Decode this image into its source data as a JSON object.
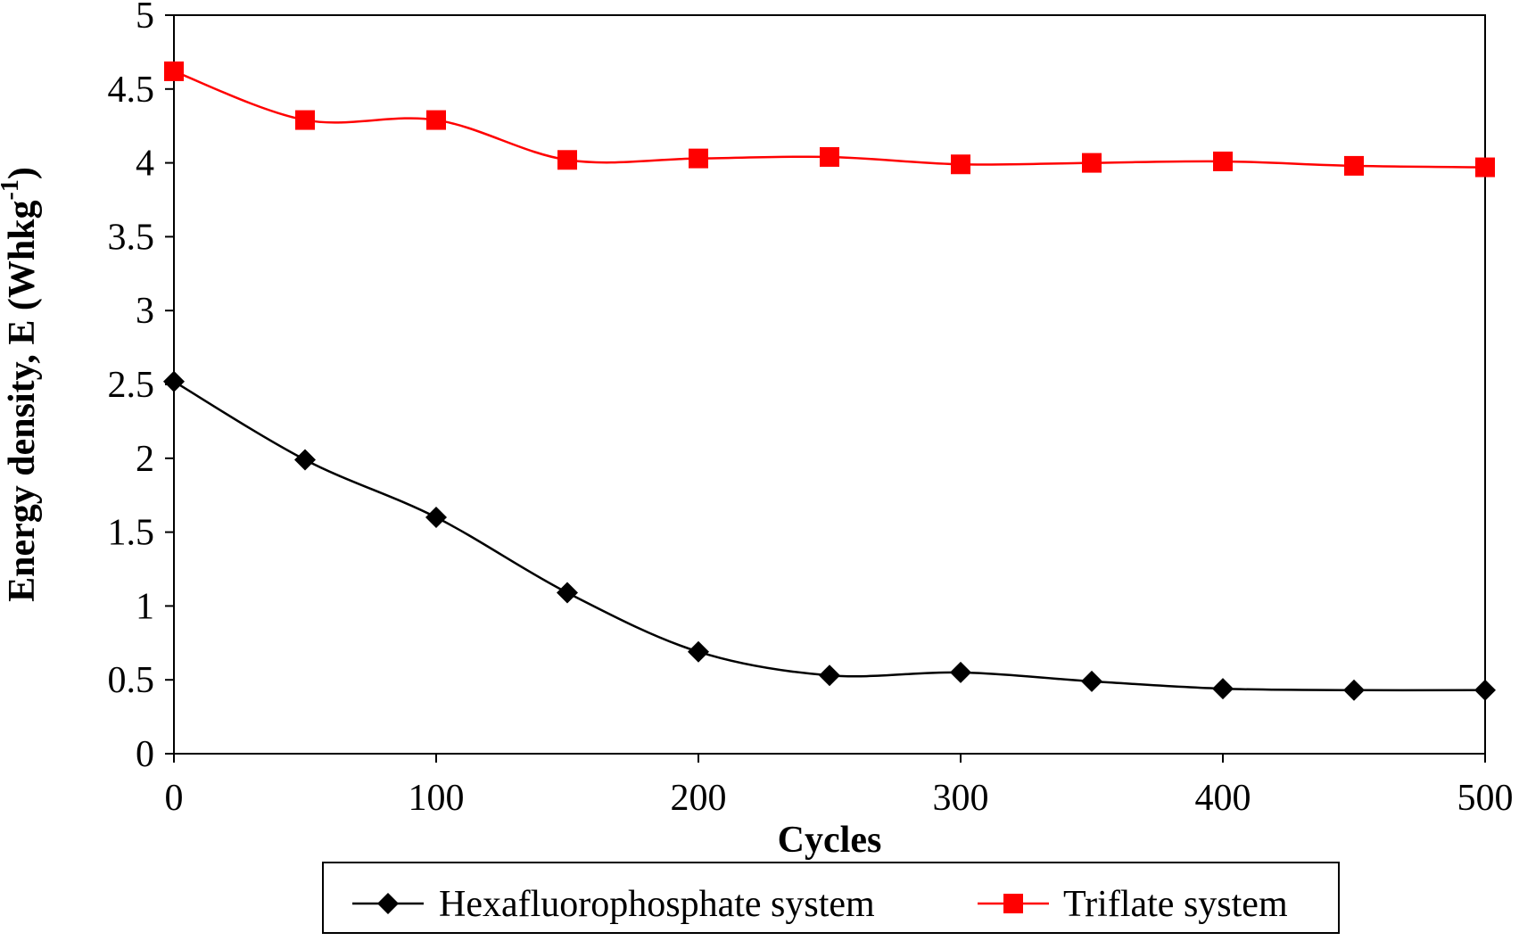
{
  "chart_data": {
    "type": "line",
    "title": "",
    "xlabel": "Cycles",
    "ylabel": "Energy density, E (Whkg",
    "ylabel_superscript": "-1",
    "ylabel_suffix": ")",
    "xlim": [
      0,
      500
    ],
    "ylim": [
      0,
      5
    ],
    "xticks": [
      0,
      100,
      200,
      300,
      400,
      500
    ],
    "xtick_labels": [
      "0",
      "100",
      "200",
      "300",
      "400",
      "500"
    ],
    "yticks": [
      0,
      0.5,
      1,
      1.5,
      2,
      2.5,
      3,
      3.5,
      4,
      4.5,
      5
    ],
    "ytick_labels": [
      "0",
      "0.5",
      "1",
      "1.5",
      "2",
      "2.5",
      "3",
      "3.5",
      "4",
      "4.5",
      "5"
    ],
    "grid": false,
    "legend_position": "bottom",
    "x": [
      0,
      50,
      100,
      150,
      200,
      250,
      300,
      350,
      400,
      450,
      500
    ],
    "series": [
      {
        "name": "Hexafluorophosphate system",
        "marker": "diamond",
        "color": "#000000",
        "values": [
          2.52,
          1.99,
          1.6,
          1.09,
          0.69,
          0.53,
          0.55,
          0.49,
          0.44,
          0.43,
          0.43
        ]
      },
      {
        "name": "Triflate system",
        "marker": "square",
        "color": "#ff0000",
        "values": [
          4.62,
          4.29,
          4.29,
          4.02,
          4.03,
          4.04,
          3.99,
          4.0,
          4.01,
          3.98,
          3.97
        ]
      }
    ]
  }
}
